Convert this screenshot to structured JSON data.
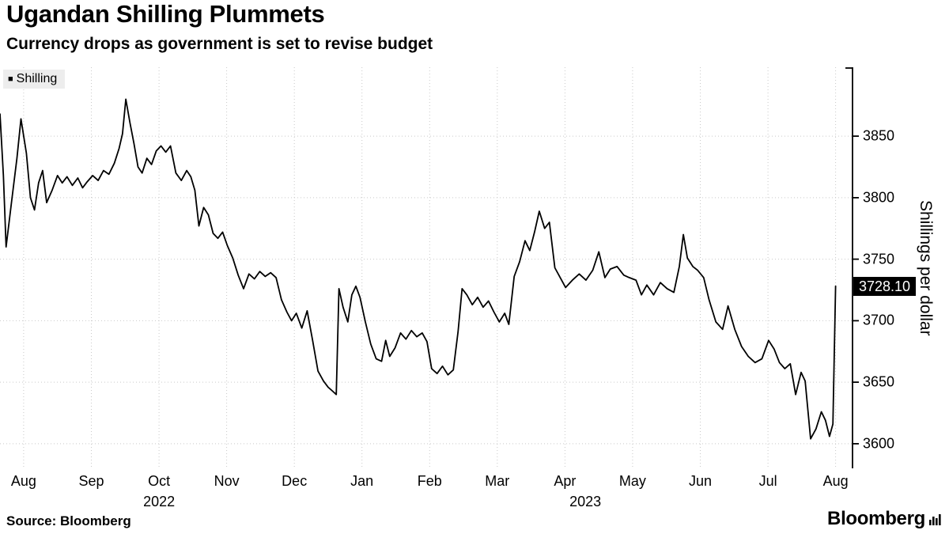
{
  "header": {
    "title": "Ugandan Shilling Plummets",
    "subtitle": "Currency drops as government is set to revise budget"
  },
  "legend": {
    "marker": "■",
    "label": "Shilling"
  },
  "y_axis_title": "Shillings per dollar",
  "value_badge": "3728.10",
  "footer": {
    "source": "Source: Bloomberg",
    "brand": "Bloomberg"
  },
  "chart_data": {
    "type": "line",
    "title": "Ugandan Shilling Plummets",
    "subtitle": "Currency drops as government is set to revise budget",
    "ylabel": "Shillings per dollar",
    "xlabel": "",
    "grid": true,
    "legend_position": "top-left",
    "line_color": "#000000",
    "ylim": [
      3580,
      3906
    ],
    "x_range": [
      -0.35,
      12.25
    ],
    "yticks": [
      3600,
      3650,
      3700,
      3750,
      3800,
      3850
    ],
    "x_ticks": [
      {
        "x": 0,
        "label": "Aug"
      },
      {
        "x": 1,
        "label": "Sep"
      },
      {
        "x": 2,
        "label": "Oct"
      },
      {
        "x": 3,
        "label": "Nov"
      },
      {
        "x": 4,
        "label": "Dec"
      },
      {
        "x": 5,
        "label": "Jan"
      },
      {
        "x": 6,
        "label": "Feb"
      },
      {
        "x": 7,
        "label": "Mar"
      },
      {
        "x": 8,
        "label": "Apr"
      },
      {
        "x": 9,
        "label": "May"
      },
      {
        "x": 10,
        "label": "Jun"
      },
      {
        "x": 11,
        "label": "Jul"
      },
      {
        "x": 12,
        "label": "Aug"
      }
    ],
    "year_labels": [
      {
        "x": 2.0,
        "label": "2022"
      },
      {
        "x": 8.3,
        "label": "2023"
      }
    ],
    "last_value": 3728.1,
    "series": [
      {
        "name": "Shilling",
        "points": [
          [
            -0.35,
            3868
          ],
          [
            -0.3,
            3818
          ],
          [
            -0.26,
            3760
          ],
          [
            -0.18,
            3796
          ],
          [
            -0.1,
            3832
          ],
          [
            -0.04,
            3864
          ],
          [
            0.04,
            3836
          ],
          [
            0.1,
            3800
          ],
          [
            0.16,
            3790
          ],
          [
            0.22,
            3812
          ],
          [
            0.28,
            3822
          ],
          [
            0.34,
            3796
          ],
          [
            0.42,
            3806
          ],
          [
            0.5,
            3818
          ],
          [
            0.57,
            3812
          ],
          [
            0.64,
            3817
          ],
          [
            0.72,
            3810
          ],
          [
            0.8,
            3816
          ],
          [
            0.87,
            3808
          ],
          [
            0.94,
            3813
          ],
          [
            1.02,
            3818
          ],
          [
            1.1,
            3814
          ],
          [
            1.18,
            3822
          ],
          [
            1.26,
            3819
          ],
          [
            1.34,
            3828
          ],
          [
            1.41,
            3840
          ],
          [
            1.46,
            3852
          ],
          [
            1.51,
            3880
          ],
          [
            1.57,
            3861
          ],
          [
            1.63,
            3844
          ],
          [
            1.69,
            3825
          ],
          [
            1.75,
            3820
          ],
          [
            1.82,
            3832
          ],
          [
            1.89,
            3827
          ],
          [
            1.96,
            3838
          ],
          [
            2.03,
            3842
          ],
          [
            2.1,
            3837
          ],
          [
            2.17,
            3842
          ],
          [
            2.25,
            3820
          ],
          [
            2.33,
            3814
          ],
          [
            2.41,
            3822
          ],
          [
            2.47,
            3817
          ],
          [
            2.53,
            3806
          ],
          [
            2.59,
            3777
          ],
          [
            2.66,
            3792
          ],
          [
            2.73,
            3786
          ],
          [
            2.8,
            3771
          ],
          [
            2.87,
            3767
          ],
          [
            2.94,
            3772
          ],
          [
            3.01,
            3761
          ],
          [
            3.09,
            3751
          ],
          [
            3.17,
            3737
          ],
          [
            3.25,
            3726
          ],
          [
            3.33,
            3738
          ],
          [
            3.41,
            3734
          ],
          [
            3.49,
            3740
          ],
          [
            3.57,
            3736
          ],
          [
            3.65,
            3739
          ],
          [
            3.73,
            3735
          ],
          [
            3.81,
            3717
          ],
          [
            3.89,
            3707
          ],
          [
            3.96,
            3700
          ],
          [
            4.03,
            3706
          ],
          [
            4.11,
            3694
          ],
          [
            4.19,
            3708
          ],
          [
            4.27,
            3684
          ],
          [
            4.35,
            3659
          ],
          [
            4.43,
            3651
          ],
          [
            4.5,
            3646
          ],
          [
            4.56,
            3643
          ],
          [
            4.62,
            3640
          ],
          [
            4.66,
            3726
          ],
          [
            4.72,
            3711
          ],
          [
            4.79,
            3699
          ],
          [
            4.85,
            3721
          ],
          [
            4.91,
            3728
          ],
          [
            4.97,
            3719
          ],
          [
            5.05,
            3699
          ],
          [
            5.13,
            3681
          ],
          [
            5.21,
            3669
          ],
          [
            5.29,
            3667
          ],
          [
            5.35,
            3684
          ],
          [
            5.41,
            3671
          ],
          [
            5.49,
            3678
          ],
          [
            5.57,
            3690
          ],
          [
            5.65,
            3685
          ],
          [
            5.73,
            3692
          ],
          [
            5.81,
            3687
          ],
          [
            5.89,
            3690
          ],
          [
            5.96,
            3683
          ],
          [
            6.03,
            3661
          ],
          [
            6.11,
            3657
          ],
          [
            6.19,
            3663
          ],
          [
            6.27,
            3656
          ],
          [
            6.35,
            3660
          ],
          [
            6.42,
            3691
          ],
          [
            6.48,
            3726
          ],
          [
            6.55,
            3721
          ],
          [
            6.63,
            3713
          ],
          [
            6.71,
            3719
          ],
          [
            6.79,
            3711
          ],
          [
            6.87,
            3716
          ],
          [
            6.95,
            3707
          ],
          [
            7.03,
            3699
          ],
          [
            7.11,
            3706
          ],
          [
            7.17,
            3697
          ],
          [
            7.25,
            3736
          ],
          [
            7.33,
            3748
          ],
          [
            7.41,
            3765
          ],
          [
            7.48,
            3757
          ],
          [
            7.55,
            3772
          ],
          [
            7.62,
            3789
          ],
          [
            7.7,
            3775
          ],
          [
            7.77,
            3780
          ],
          [
            7.85,
            3743
          ],
          [
            7.93,
            3735
          ],
          [
            8.01,
            3727
          ],
          [
            8.11,
            3733
          ],
          [
            8.21,
            3738
          ],
          [
            8.31,
            3733
          ],
          [
            8.41,
            3741
          ],
          [
            8.5,
            3756
          ],
          [
            8.59,
            3735
          ],
          [
            8.67,
            3742
          ],
          [
            8.77,
            3744
          ],
          [
            8.87,
            3737
          ],
          [
            8.95,
            3735
          ],
          [
            9.05,
            3733
          ],
          [
            9.13,
            3721
          ],
          [
            9.21,
            3729
          ],
          [
            9.31,
            3721
          ],
          [
            9.41,
            3731
          ],
          [
            9.51,
            3726
          ],
          [
            9.61,
            3723
          ],
          [
            9.69,
            3744
          ],
          [
            9.75,
            3770
          ],
          [
            9.81,
            3751
          ],
          [
            9.89,
            3744
          ],
          [
            9.96,
            3741
          ],
          [
            10.05,
            3735
          ],
          [
            10.13,
            3717
          ],
          [
            10.23,
            3699
          ],
          [
            10.33,
            3693
          ],
          [
            10.41,
            3712
          ],
          [
            10.51,
            3693
          ],
          [
            10.61,
            3679
          ],
          [
            10.71,
            3671
          ],
          [
            10.81,
            3666
          ],
          [
            10.91,
            3669
          ],
          [
            11.01,
            3684
          ],
          [
            11.09,
            3677
          ],
          [
            11.17,
            3666
          ],
          [
            11.25,
            3661
          ],
          [
            11.33,
            3665
          ],
          [
            11.41,
            3640
          ],
          [
            11.49,
            3658
          ],
          [
            11.55,
            3651
          ],
          [
            11.63,
            3604
          ],
          [
            11.71,
            3612
          ],
          [
            11.79,
            3626
          ],
          [
            11.85,
            3619
          ],
          [
            11.91,
            3606
          ],
          [
            11.96,
            3616
          ],
          [
            12.0,
            3728.1
          ]
        ]
      }
    ]
  }
}
